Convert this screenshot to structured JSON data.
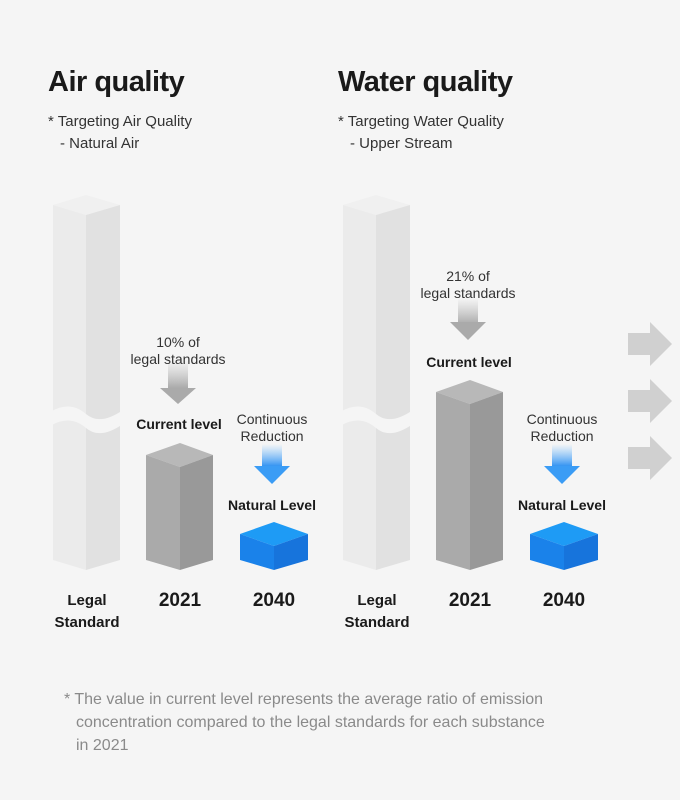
{
  "air": {
    "title": "Air quality",
    "target_line1": "* Targeting Air Quality",
    "target_line2": "- Natural Air",
    "current_note_line1": "10% of",
    "current_note_line2": "legal standards",
    "current_label": "Current level",
    "reduction_line1": "Continuous",
    "reduction_line2": "Reduction",
    "natural_label": "Natural Level",
    "x_labels": {
      "legal_line1": "Legal",
      "legal_line2": "Standard",
      "y2021": "2021",
      "y2040": "2040"
    }
  },
  "water": {
    "title": "Water quality",
    "target_line1": "* Targeting Water Quality",
    "target_line2": "- Upper Stream",
    "current_note_line1": "21% of",
    "current_note_line2": "legal standards",
    "current_label": "Current level",
    "reduction_line1": "Continuous",
    "reduction_line2": "Reduction",
    "natural_label": "Natural Level",
    "x_labels": {
      "legal_line1": "Legal",
      "legal_line2": "Standard",
      "y2021": "2021",
      "y2040": "2040"
    }
  },
  "footnote": {
    "line1": "* The value in current level represents the average ratio of emission",
    "line2": "concentration compared to the legal standards for each substance",
    "line3": "in 2021"
  },
  "colors": {
    "legal_bar": "#e6e6e6",
    "current_bar": "#a8a8a8",
    "natural_level": "#1e88f0",
    "side_arrows": "#d0d0d0"
  }
}
